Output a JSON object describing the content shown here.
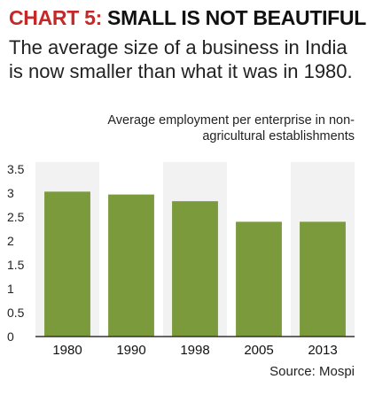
{
  "header": {
    "title_prefix": "CHART 5:",
    "title_main": " SMALL IS NOT BEAUTIFUL",
    "subtitle": "The average size of a business in India is now smaller than what it was in 1980."
  },
  "chart_data": {
    "type": "bar",
    "title": "CHART 5: SMALL IS NOT BEAUTIFUL",
    "subtitle": "The average size of a business in India is now smaller than what it was in 1980.",
    "ylabel": "Average employment per enterprise in non-agricultural establishments",
    "xlabel": "",
    "categories": [
      "1980",
      "1990",
      "1998",
      "2005",
      "2013"
    ],
    "values": [
      3.03,
      2.97,
      2.83,
      2.4,
      2.4
    ],
    "ylim": [
      0,
      3.5
    ],
    "yticks": [
      "0",
      "0.5",
      "1",
      "1.5",
      "2",
      "2.5",
      "3",
      "3.5"
    ],
    "grid": false,
    "colors": {
      "bar": "#7a9a3c",
      "band": "#f2f2f2"
    },
    "source": "Source: Mospi"
  }
}
